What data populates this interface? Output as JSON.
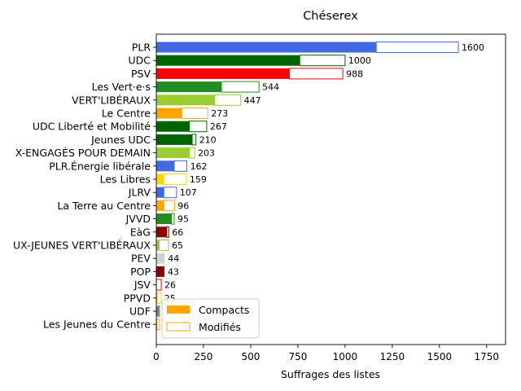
{
  "chart_data": {
    "type": "bar",
    "orientation": "horizontal",
    "stacked_overlay": true,
    "title": "Chéserex",
    "xlabel": "Suffrages des listes",
    "ylabel": "",
    "xlim": [
      0,
      1850
    ],
    "xticks": [
      0,
      250,
      500,
      750,
      1000,
      1250,
      1500,
      1750
    ],
    "grid": false,
    "legend": {
      "placement": "lower-left",
      "entries": [
        {
          "label": "Compacts",
          "style": "filled",
          "color": "#ffa500"
        },
        {
          "label": "Modifiés",
          "style": "outline",
          "color": "#ffa500"
        }
      ]
    },
    "categories": [
      "PLR",
      "UDC",
      "PSV",
      "Les Vert·e·s",
      "VERT'LIBÉRAUX",
      "Le Centre",
      "UDC Liberté et Mobilité",
      "Jeunes UDC",
      "X-ENGAGÉS POUR DEMAIN",
      "PLR.Énergie libérale",
      "Les Libres",
      "JLRV",
      "La Terre au Centre",
      "JVVD",
      "EàG",
      "UX-JEUNES VERT'LIBÉRAUX",
      "PEV",
      "POP",
      "JSV",
      "PPVD",
      "UDF",
      "Les Jeunes du Centre"
    ],
    "totals": [
      1600,
      1000,
      988,
      544,
      447,
      273,
      267,
      210,
      203,
      162,
      159,
      107,
      96,
      95,
      66,
      65,
      44,
      43,
      26,
      25,
      17,
      17
    ],
    "total_labels": [
      "1600",
      "1000",
      "988",
      "544",
      "447",
      "273",
      "267",
      "210",
      "203",
      "162",
      "159",
      "107",
      "96",
      "95",
      "66",
      "65",
      "44",
      "43",
      "26",
      "25",
      "",
      ""
    ],
    "compacts": [
      1165,
      760,
      705,
      345,
      310,
      135,
      175,
      190,
      175,
      95,
      40,
      40,
      40,
      80,
      55,
      15,
      44,
      43,
      0,
      5,
      12,
      3
    ],
    "colors": [
      "#4169e1",
      "#006400",
      "#ff0000",
      "#228b22",
      "#9acd32",
      "#ffa500",
      "#006400",
      "#006400",
      "#9acd32",
      "#4169e1",
      "#ffd700",
      "#4169e1",
      "#ffa500",
      "#228b22",
      "#8b0000",
      "#9acd32",
      "#d3d3d3",
      "#8b0000",
      "#ff0000",
      "#ffd700",
      "#808080",
      "#ffa500"
    ]
  }
}
